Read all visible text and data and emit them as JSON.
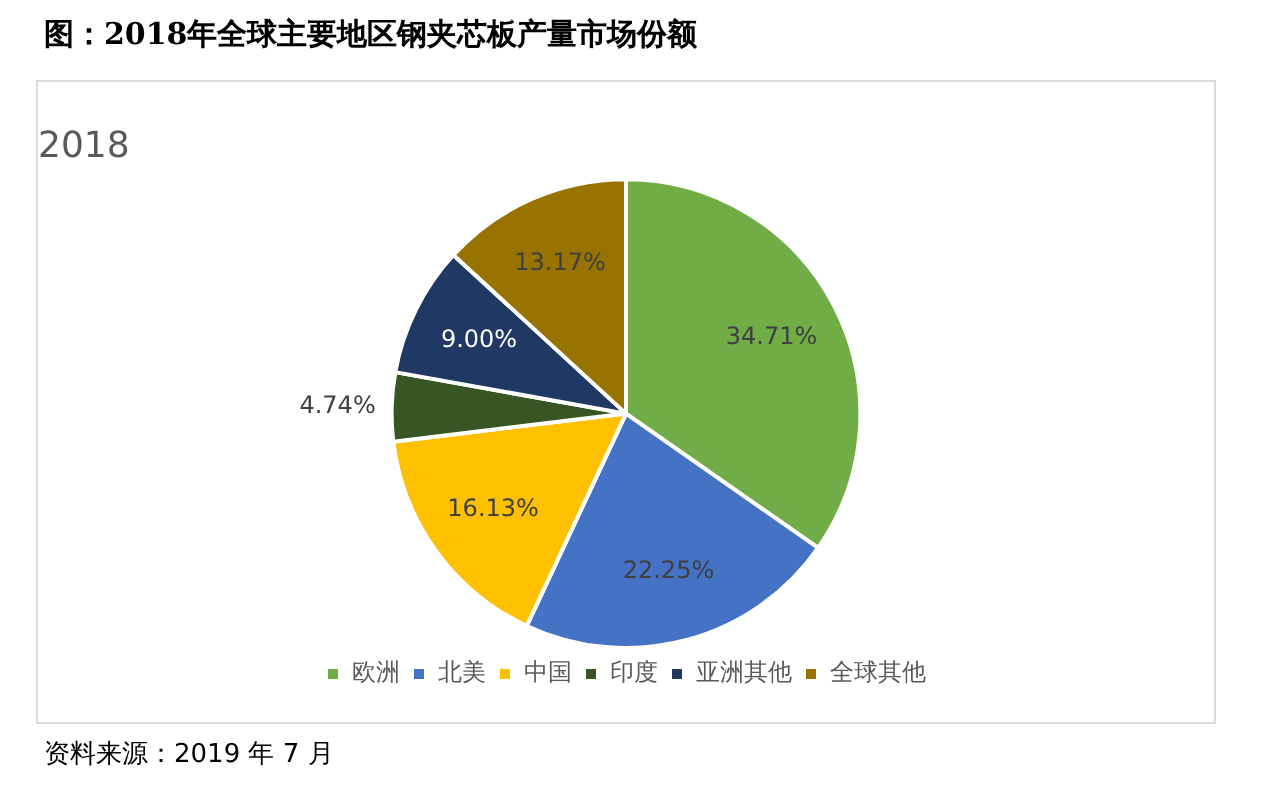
{
  "chart_data": {
    "type": "pie",
    "title": "图：2018年全球主要地区钢夹芯板产量市场份额",
    "subtitle": "2018",
    "categories": [
      "欧洲",
      "北美",
      "中国",
      "印度",
      "亚洲其他",
      "全球其他"
    ],
    "values": [
      34.71,
      22.25,
      16.13,
      4.74,
      9.0,
      13.17
    ],
    "colors": [
      "#70ad47",
      "#4472c4",
      "#ffc000",
      "#375623",
      "#203864",
      "#997300"
    ],
    "value_labels": [
      "34.71%",
      "22.25%",
      "16.13%",
      "4.74%",
      "9.00%",
      "13.17%"
    ],
    "legend": "bottom",
    "annotations": [
      "资料来源：2019 年 7 月"
    ]
  }
}
